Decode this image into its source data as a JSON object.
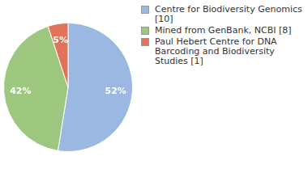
{
  "chart_data": {
    "type": "pie",
    "categories": [
      "Centre for Biodiversity Genomics [10]",
      "Mined from GenBank, NCBI [8]",
      "Paul Hebert Centre for DNA Barcoding and Biodiversity Studies [1]"
    ],
    "values": [
      52,
      42,
      5
    ],
    "value_labels": [
      "52%",
      "42%",
      "5%"
    ],
    "colors": [
      "#9ab8e1",
      "#9dc77e",
      "#e0735a"
    ],
    "data_labels": true,
    "legend": "top-right"
  }
}
